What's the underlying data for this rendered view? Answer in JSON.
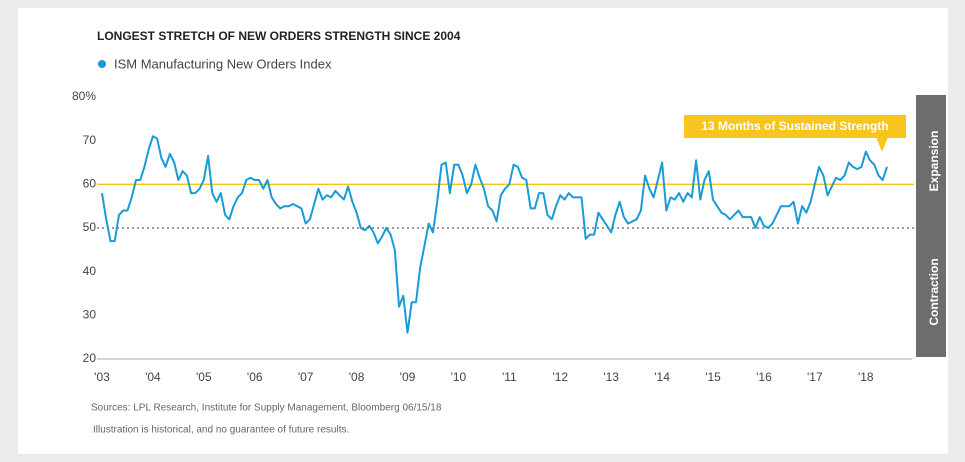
{
  "chart_data": {
    "type": "line",
    "title": "LONGEST STRETCH OF NEW ORDERS STRENGTH SINCE 2004",
    "annotation": "13 Months of Sustained Strength",
    "zone_labels": [
      "Expansion",
      "Contraction"
    ],
    "source": "Sources: LPL Research, Institute for Supply Management, Bloomberg   06/15/18",
    "note": "Illustration is historical, and no guarantee of future results.",
    "xlim": [
      2003,
      2018.417
    ],
    "xticks": [
      {
        "value": 2003,
        "label": "'03"
      },
      {
        "value": 2004,
        "label": "'04"
      },
      {
        "value": 2005,
        "label": "'05"
      },
      {
        "value": 2006,
        "label": "'06"
      },
      {
        "value": 2007,
        "label": "'07"
      },
      {
        "value": 2008,
        "label": "'08"
      },
      {
        "value": 2009,
        "label": "'09"
      },
      {
        "value": 2010,
        "label": "'10"
      },
      {
        "value": 2011,
        "label": "'11"
      },
      {
        "value": 2012,
        "label": "'12"
      },
      {
        "value": 2013,
        "label": "'13"
      },
      {
        "value": 2014,
        "label": "'14"
      },
      {
        "value": 2015,
        "label": "'15"
      },
      {
        "value": 2016,
        "label": "'16"
      },
      {
        "value": 2017,
        "label": "'17"
      },
      {
        "value": 2018,
        "label": "'18"
      }
    ],
    "ylim": [
      20,
      80
    ],
    "yticks": [
      20,
      30,
      40,
      50,
      60,
      70,
      {
        "value": 80,
        "label": "80%"
      }
    ],
    "reference_lines": [
      {
        "value": 60,
        "color": "#f5c518",
        "style": "solid"
      },
      {
        "value": 50,
        "color": "#333333",
        "style": "dotted"
      }
    ],
    "x": [
      2003,
      2003.083,
      2003.167,
      2003.25,
      2003.333,
      2003.417,
      2003.5,
      2003.583,
      2003.667,
      2003.75,
      2003.833,
      2003.917,
      2004,
      2004.083,
      2004.167,
      2004.25,
      2004.333,
      2004.417,
      2004.5,
      2004.583,
      2004.667,
      2004.75,
      2004.833,
      2004.917,
      2005,
      2005.083,
      2005.167,
      2005.25,
      2005.333,
      2005.417,
      2005.5,
      2005.583,
      2005.667,
      2005.75,
      2005.833,
      2005.917,
      2006,
      2006.083,
      2006.167,
      2006.25,
      2006.333,
      2006.417,
      2006.5,
      2006.583,
      2006.667,
      2006.75,
      2006.833,
      2006.917,
      2007,
      2007.083,
      2007.167,
      2007.25,
      2007.333,
      2007.417,
      2007.5,
      2007.583,
      2007.667,
      2007.75,
      2007.833,
      2007.917,
      2008,
      2008.083,
      2008.167,
      2008.25,
      2008.333,
      2008.417,
      2008.5,
      2008.583,
      2008.667,
      2008.75,
      2008.833,
      2008.917,
      2009,
      2009.083,
      2009.167,
      2009.25,
      2009.333,
      2009.417,
      2009.5,
      2009.583,
      2009.667,
      2009.75,
      2009.833,
      2009.917,
      2010,
      2010.083,
      2010.167,
      2010.25,
      2010.333,
      2010.417,
      2010.5,
      2010.583,
      2010.667,
      2010.75,
      2010.833,
      2010.917,
      2011,
      2011.083,
      2011.167,
      2011.25,
      2011.333,
      2011.417,
      2011.5,
      2011.583,
      2011.667,
      2011.75,
      2011.833,
      2011.917,
      2012,
      2012.083,
      2012.167,
      2012.25,
      2012.333,
      2012.417,
      2012.5,
      2012.583,
      2012.667,
      2012.75,
      2012.833,
      2012.917,
      2013,
      2013.083,
      2013.167,
      2013.25,
      2013.333,
      2013.417,
      2013.5,
      2013.583,
      2013.667,
      2013.75,
      2013.833,
      2013.917,
      2014,
      2014.083,
      2014.167,
      2014.25,
      2014.333,
      2014.417,
      2014.5,
      2014.583,
      2014.667,
      2014.75,
      2014.833,
      2014.917,
      2015,
      2015.083,
      2015.167,
      2015.25,
      2015.333,
      2015.417,
      2015.5,
      2015.583,
      2015.667,
      2015.75,
      2015.833,
      2015.917,
      2016,
      2016.083,
      2016.167,
      2016.25,
      2016.333,
      2016.417,
      2016.5,
      2016.583,
      2016.667,
      2016.75,
      2016.833,
      2016.917,
      2017,
      2017.083,
      2017.167,
      2017.25,
      2017.333,
      2017.417,
      2017.5,
      2017.583,
      2017.667,
      2017.75,
      2017.833,
      2017.917,
      2018,
      2018.083,
      2018.167,
      2018.25,
      2018.333,
      2018.417
    ],
    "series": [
      {
        "name": "ISM Manufacturing New Orders Index",
        "color": "#1a9ad6",
        "values": [
          58,
          52,
          47,
          47,
          53,
          54,
          54,
          57,
          61,
          61,
          64,
          68,
          71,
          70.5,
          66,
          64,
          67,
          65,
          61,
          63,
          62,
          58,
          58,
          59,
          61,
          66.5,
          58,
          56,
          58,
          53,
          52,
          55,
          57,
          58,
          61,
          61.5,
          61,
          61,
          59,
          61,
          57,
          55.5,
          54.5,
          55,
          55,
          55.5,
          55,
          54.5,
          51,
          52,
          55.5,
          59,
          56.5,
          57.5,
          57,
          58.5,
          57.5,
          56.5,
          59.5,
          56,
          53.5,
          50,
          49.5,
          50.5,
          49,
          46.5,
          48,
          50,
          48.5,
          45,
          32,
          34.5,
          26,
          33,
          33,
          41,
          46,
          51,
          49,
          56,
          64.5,
          65,
          58,
          64.5,
          64.5,
          62,
          58,
          60,
          64.5,
          61.5,
          59,
          55,
          54,
          51.5,
          57.5,
          59,
          60,
          64.5,
          64,
          61.5,
          61,
          54.5,
          54.5,
          58,
          58,
          53,
          52,
          55,
          57.5,
          56.5,
          58,
          57,
          57,
          57,
          47.5,
          48.5,
          48.5,
          53.5,
          52,
          50.5,
          49,
          53,
          56,
          52.5,
          51,
          51.5,
          52,
          54,
          62,
          59,
          57,
          61,
          65,
          54,
          57,
          56.5,
          58,
          56,
          58,
          57,
          65.5,
          56.5,
          61,
          63,
          56.5,
          55,
          53.5,
          53,
          52,
          53,
          54,
          52.5,
          52.5,
          52.5,
          50,
          52.5,
          50.5,
          50,
          51,
          53,
          55,
          55,
          55,
          56,
          51,
          55,
          53.5,
          56,
          60,
          64,
          62,
          57.5,
          59.5,
          61.5,
          61,
          62,
          65,
          64,
          63.5,
          64,
          67.5,
          65.5,
          64.5,
          62,
          61,
          64
        ]
      }
    ]
  }
}
